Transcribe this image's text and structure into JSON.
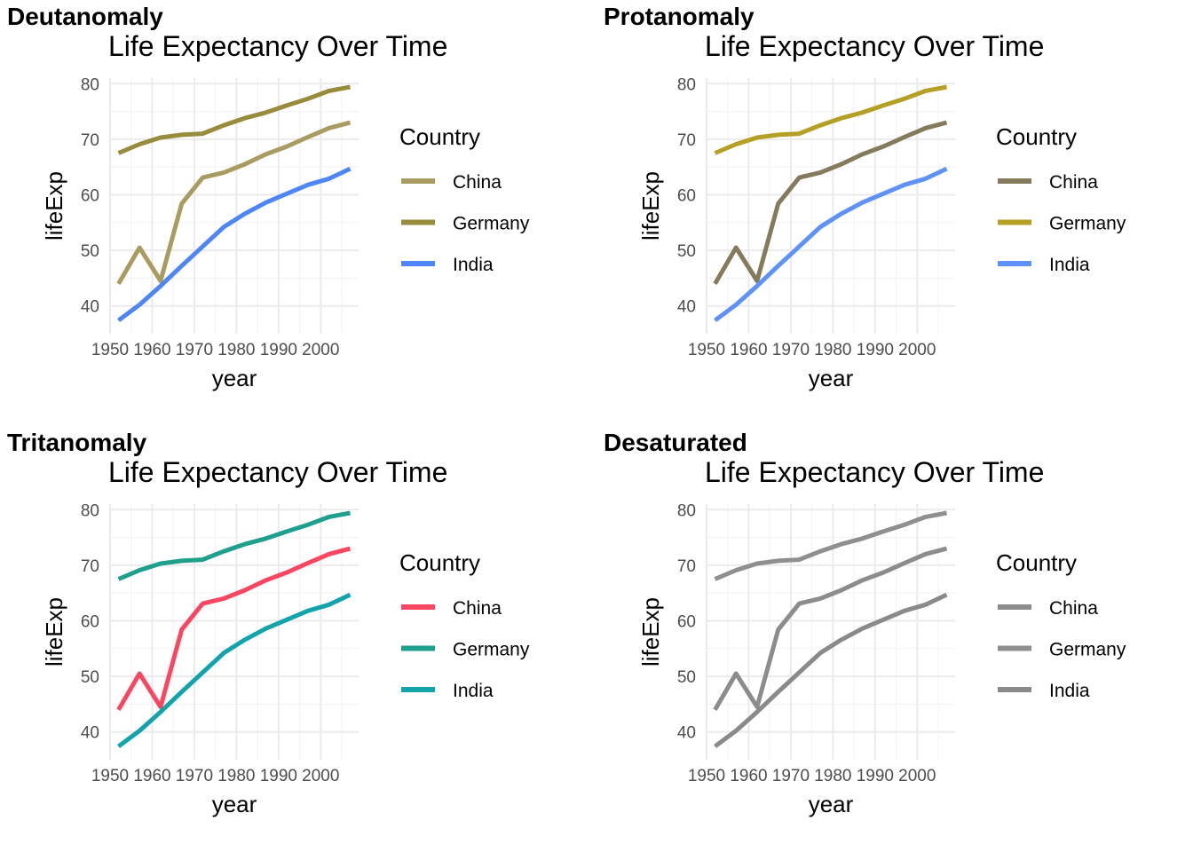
{
  "chart_data": [
    {
      "type": "line",
      "panel_label": "Deutanomaly",
      "title": "Life Expectancy Over Time",
      "xlabel": "year",
      "ylabel": "lifeExp",
      "xlim": [
        1950,
        2009
      ],
      "ylim": [
        35,
        81
      ],
      "x_ticks": [
        1950,
        1960,
        1970,
        1980,
        1990,
        2000
      ],
      "y_ticks": [
        40,
        50,
        60,
        70,
        80
      ],
      "legend_title": "Country",
      "legend_position": "right",
      "x": [
        1952,
        1957,
        1962,
        1967,
        1972,
        1977,
        1982,
        1987,
        1992,
        1997,
        2002,
        2007
      ],
      "series": [
        {
          "name": "China",
          "color": "#a89c60",
          "values": [
            44.0,
            50.5,
            44.5,
            58.4,
            63.1,
            64.0,
            65.5,
            67.3,
            68.7,
            70.4,
            72.0,
            73.0
          ]
        },
        {
          "name": "Germany",
          "color": "#978b3c",
          "values": [
            67.5,
            69.1,
            70.3,
            70.8,
            71.0,
            72.5,
            73.8,
            74.8,
            76.1,
            77.3,
            78.7,
            79.4
          ]
        },
        {
          "name": "India",
          "color": "#4f86f7",
          "values": [
            37.4,
            40.2,
            43.6,
            47.2,
            50.7,
            54.2,
            56.6,
            58.6,
            60.2,
            61.8,
            62.9,
            64.7
          ]
        }
      ]
    },
    {
      "type": "line",
      "panel_label": "Protanomaly",
      "title": "Life Expectancy Over Time",
      "xlabel": "year",
      "ylabel": "lifeExp",
      "xlim": [
        1950,
        2009
      ],
      "ylim": [
        35,
        81
      ],
      "x_ticks": [
        1950,
        1960,
        1970,
        1980,
        1990,
        2000
      ],
      "y_ticks": [
        40,
        50,
        60,
        70,
        80
      ],
      "legend_title": "Country",
      "legend_position": "right",
      "x": [
        1952,
        1957,
        1962,
        1967,
        1972,
        1977,
        1982,
        1987,
        1992,
        1997,
        2002,
        2007
      ],
      "series": [
        {
          "name": "China",
          "color": "#847a5c",
          "values": [
            44.0,
            50.5,
            44.5,
            58.4,
            63.1,
            64.0,
            65.5,
            67.3,
            68.7,
            70.4,
            72.0,
            73.0
          ]
        },
        {
          "name": "Germany",
          "color": "#b3a025",
          "values": [
            67.5,
            69.1,
            70.3,
            70.8,
            71.0,
            72.5,
            73.8,
            74.8,
            76.1,
            77.3,
            78.7,
            79.4
          ]
        },
        {
          "name": "India",
          "color": "#5f92f9",
          "values": [
            37.4,
            40.2,
            43.6,
            47.2,
            50.7,
            54.2,
            56.6,
            58.6,
            60.2,
            61.8,
            62.9,
            64.7
          ]
        }
      ]
    },
    {
      "type": "line",
      "panel_label": "Tritanomaly",
      "title": "Life Expectancy Over Time",
      "xlabel": "year",
      "ylabel": "lifeExp",
      "xlim": [
        1950,
        2009
      ],
      "ylim": [
        35,
        81
      ],
      "x_ticks": [
        1950,
        1960,
        1970,
        1980,
        1990,
        2000
      ],
      "y_ticks": [
        40,
        50,
        60,
        70,
        80
      ],
      "legend_title": "Country",
      "legend_position": "right",
      "x": [
        1952,
        1957,
        1962,
        1967,
        1972,
        1977,
        1982,
        1987,
        1992,
        1997,
        2002,
        2007
      ],
      "series": [
        {
          "name": "China",
          "color": "#fa4661",
          "values": [
            44.0,
            50.5,
            44.5,
            58.4,
            63.1,
            64.0,
            65.5,
            67.3,
            68.7,
            70.4,
            72.0,
            73.0
          ]
        },
        {
          "name": "Germany",
          "color": "#1ea08c",
          "values": [
            67.5,
            69.1,
            70.3,
            70.8,
            71.0,
            72.5,
            73.8,
            74.8,
            76.1,
            77.3,
            78.7,
            79.4
          ]
        },
        {
          "name": "India",
          "color": "#13a3ab",
          "values": [
            37.4,
            40.2,
            43.6,
            47.2,
            50.7,
            54.2,
            56.6,
            58.6,
            60.2,
            61.8,
            62.9,
            64.7
          ]
        }
      ]
    },
    {
      "type": "line",
      "panel_label": "Desaturated",
      "title": "Life Expectancy Over Time",
      "xlabel": "year",
      "ylabel": "lifeExp",
      "xlim": [
        1950,
        2009
      ],
      "ylim": [
        35,
        81
      ],
      "x_ticks": [
        1950,
        1960,
        1970,
        1980,
        1990,
        2000
      ],
      "y_ticks": [
        40,
        50,
        60,
        70,
        80
      ],
      "legend_title": "Country",
      "legend_position": "right",
      "x": [
        1952,
        1957,
        1962,
        1967,
        1972,
        1977,
        1982,
        1987,
        1992,
        1997,
        2002,
        2007
      ],
      "series": [
        {
          "name": "China",
          "color": "#8c8c8c",
          "values": [
            44.0,
            50.5,
            44.5,
            58.4,
            63.1,
            64.0,
            65.5,
            67.3,
            68.7,
            70.4,
            72.0,
            73.0
          ]
        },
        {
          "name": "Germany",
          "color": "#8f8f8f",
          "values": [
            67.5,
            69.1,
            70.3,
            70.8,
            71.0,
            72.5,
            73.8,
            74.8,
            76.1,
            77.3,
            78.7,
            79.4
          ]
        },
        {
          "name": "India",
          "color": "#8a8a8a",
          "values": [
            37.4,
            40.2,
            43.6,
            47.2,
            50.7,
            54.2,
            56.6,
            58.6,
            60.2,
            61.8,
            62.9,
            64.7
          ]
        }
      ]
    }
  ]
}
